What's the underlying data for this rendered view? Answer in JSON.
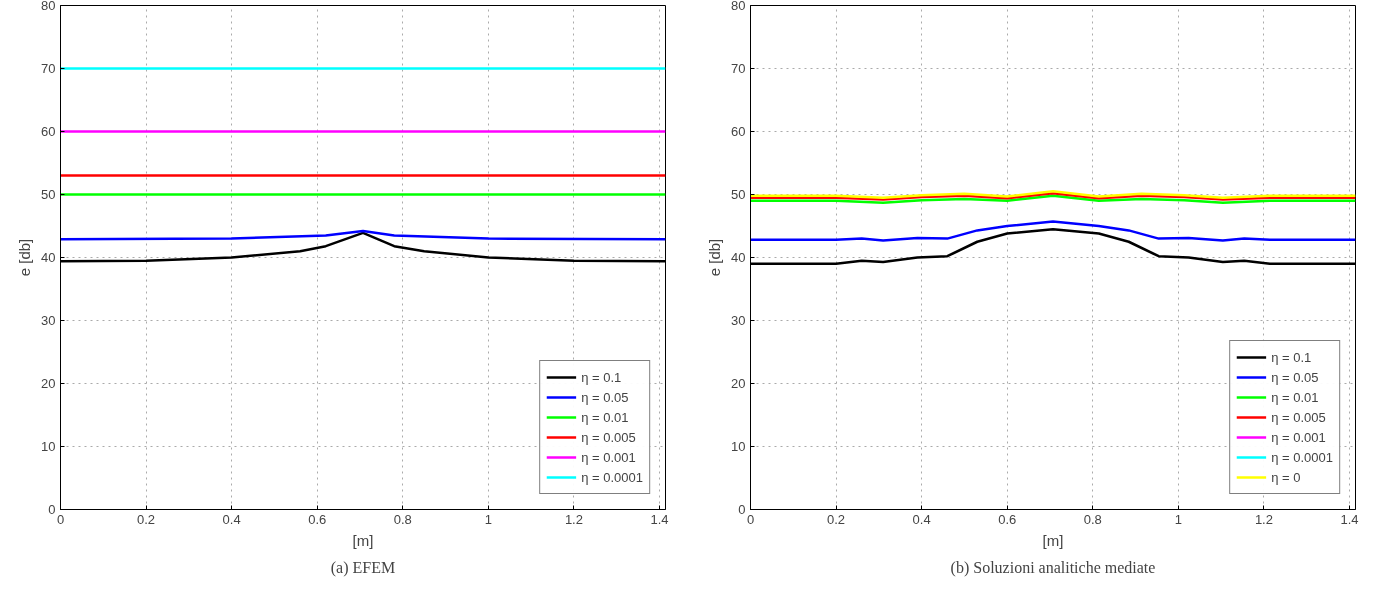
{
  "chart_data": [
    {
      "type": "line",
      "title": "(a) EFEM",
      "xlabel": "[m]",
      "ylabel": "e [db]",
      "xlim": [
        0,
        1.414
      ],
      "ylim": [
        0,
        80
      ],
      "xticks": [
        0,
        0.2,
        0.4,
        0.6,
        0.8,
        1,
        1.2,
        1.4
      ],
      "yticks": [
        0,
        10,
        20,
        30,
        40,
        50,
        60,
        70,
        80
      ],
      "grid": true,
      "legend": "bottom right",
      "line_style": "solid",
      "marker": "none",
      "series": [
        {
          "name": "η = 0.1",
          "color": "#000000",
          "x": [
            0,
            0.2,
            0.4,
            0.56,
            0.62,
            0.707,
            0.78,
            0.85,
            1.0,
            1.2,
            1.414
          ],
          "values": [
            39.4,
            39.5,
            40.0,
            41.0,
            41.8,
            43.9,
            41.8,
            41.0,
            40.0,
            39.5,
            39.4
          ]
        },
        {
          "name": "η = 0.05",
          "color": "#0000ff",
          "x": [
            0,
            0.4,
            0.62,
            0.707,
            0.78,
            1.0,
            1.414
          ],
          "values": [
            42.9,
            43.0,
            43.5,
            44.2,
            43.5,
            43.0,
            42.9
          ]
        },
        {
          "name": "η = 0.01",
          "color": "#00ff00",
          "x": [
            0,
            1.414
          ],
          "values": [
            50,
            50
          ]
        },
        {
          "name": "η = 0.005",
          "color": "#ff0000",
          "x": [
            0,
            1.414
          ],
          "values": [
            53,
            53
          ]
        },
        {
          "name": "η = 0.001",
          "color": "#ff00ff",
          "x": [
            0,
            1.414
          ],
          "values": [
            60,
            60
          ]
        },
        {
          "name": "η = 0.0001",
          "color": "#00ffff",
          "x": [
            0,
            1.414
          ],
          "values": [
            70,
            70
          ]
        }
      ]
    },
    {
      "type": "line",
      "title": "(b) Soluzioni analitiche mediate",
      "xlabel": "[m]",
      "ylabel": "e [db]",
      "xlim": [
        0,
        1.414
      ],
      "ylim": [
        0,
        80
      ],
      "xticks": [
        0,
        0.2,
        0.4,
        0.6,
        0.8,
        1,
        1.2,
        1.4
      ],
      "yticks": [
        0,
        10,
        20,
        30,
        40,
        50,
        60,
        70,
        80
      ],
      "grid": true,
      "legend": "bottom right",
      "line_style": "solid",
      "marker": "none",
      "series": [
        {
          "name": "η = 0.1",
          "color": "#000000",
          "x": [
            0,
            0.2,
            0.26,
            0.31,
            0.39,
            0.46,
            0.53,
            0.6,
            0.707,
            0.814,
            0.884,
            0.954,
            1.024,
            1.104,
            1.154,
            1.214,
            1.414
          ],
          "values": [
            39.0,
            39.0,
            39.5,
            39.3,
            40.0,
            40.2,
            42.5,
            43.8,
            44.5,
            43.8,
            42.5,
            40.2,
            40.0,
            39.3,
            39.5,
            39.0,
            39.0
          ]
        },
        {
          "name": "η = 0.05",
          "color": "#0000ff",
          "x": [
            0,
            0.2,
            0.26,
            0.31,
            0.39,
            0.46,
            0.53,
            0.6,
            0.707,
            0.814,
            0.884,
            0.954,
            1.024,
            1.104,
            1.154,
            1.214,
            1.414
          ],
          "values": [
            42.8,
            42.8,
            43.0,
            42.7,
            43.1,
            43.0,
            44.3,
            45.0,
            45.7,
            45.0,
            44.3,
            43.0,
            43.1,
            42.7,
            43.0,
            42.8,
            42.8
          ]
        },
        {
          "name": "η = 0.01",
          "color": "#00ff00",
          "x": [
            0,
            0.2,
            0.31,
            0.4,
            0.5,
            0.6,
            0.707,
            0.814,
            0.914,
            1.014,
            1.104,
            1.214,
            1.414
          ],
          "values": [
            49.0,
            49.0,
            48.7,
            49.1,
            49.3,
            49.0,
            49.8,
            49.0,
            49.3,
            49.1,
            48.7,
            49.0,
            49.0
          ]
        },
        {
          "name": "η = 0.005",
          "color": "#ff0000",
          "x": [
            0,
            0.2,
            0.31,
            0.4,
            0.5,
            0.6,
            0.707,
            0.814,
            0.914,
            1.014,
            1.104,
            1.214,
            1.414
          ],
          "values": [
            49.5,
            49.5,
            49.2,
            49.6,
            49.8,
            49.4,
            50.2,
            49.4,
            49.8,
            49.6,
            49.2,
            49.5,
            49.5
          ]
        },
        {
          "name": "η = 0.001",
          "color": "#ff00ff"
        },
        {
          "name": "η = 0.0001",
          "color": "#00ffff"
        },
        {
          "name": "η = 0",
          "color": "#ffff00",
          "x": [
            0,
            0.2,
            0.31,
            0.4,
            0.5,
            0.6,
            0.707,
            0.814,
            0.914,
            1.014,
            1.104,
            1.214,
            1.414
          ],
          "values": [
            49.8,
            49.8,
            49.5,
            49.9,
            50.1,
            49.7,
            50.5,
            49.7,
            50.1,
            49.9,
            49.5,
            49.8,
            49.8
          ]
        }
      ]
    }
  ]
}
